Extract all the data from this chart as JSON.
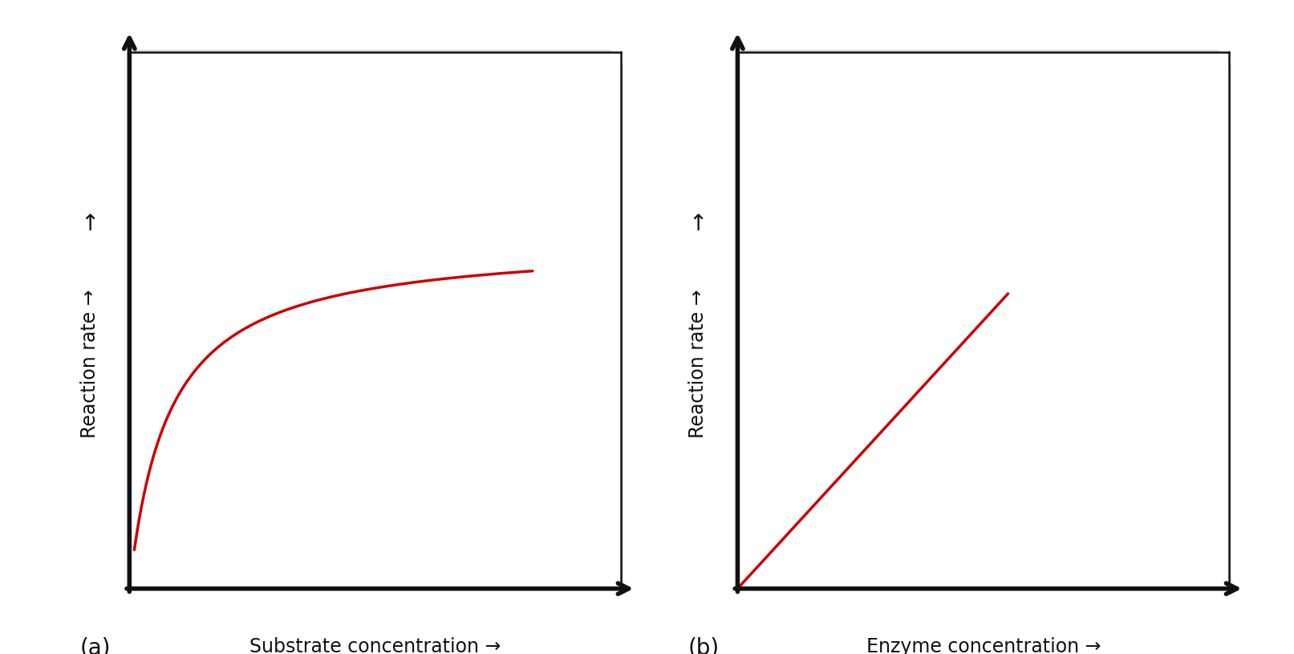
{
  "background_color": "#ffffff",
  "panel_bg": "#ffffff",
  "line_color": "#cc0000",
  "axis_color": "#111111",
  "label_color": "#111111",
  "shadow_color": "#cccccc",
  "panel_a": {
    "xlabel": "Substrate concentration →",
    "ylabel": "Reaction rate →",
    "label": "(a)"
  },
  "panel_b": {
    "xlabel": "Enzyme concentration →",
    "ylabel": "Reaction rate →",
    "label": "(b)"
  },
  "line_width": 2.5,
  "axis_linewidth": 4.0,
  "font_size_label": 17,
  "font_size_panel": 20
}
